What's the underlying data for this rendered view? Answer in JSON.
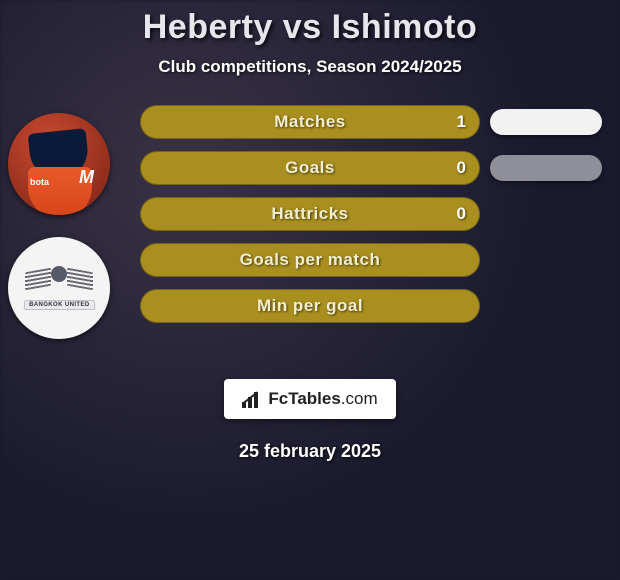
{
  "header": {
    "title": "Heberty vs Ishimoto",
    "subtitle": "Club competitions, Season 2024/2025",
    "title_color": "#e6e6ec"
  },
  "player": {
    "sponsor": "bota",
    "brand_mark": "M"
  },
  "club": {
    "banner": "BANGKOK UNITED"
  },
  "stats": {
    "bar_color": "#a98f1f",
    "label_color": "#f2eecf",
    "rows": [
      {
        "label": "Matches",
        "value": "1"
      },
      {
        "label": "Goals",
        "value": "0"
      },
      {
        "label": "Hattricks",
        "value": "0"
      },
      {
        "label": "Goals per match",
        "value": ""
      },
      {
        "label": "Min per goal",
        "value": ""
      }
    ]
  },
  "side_pills": [
    {
      "color": "#f2f2f2"
    },
    {
      "color": "#8f8f99"
    }
  ],
  "footer": {
    "brand_main": "FcTables",
    "brand_suffix": ".com",
    "date": "25 february 2025"
  },
  "colors": {
    "background": "#1a1a2e"
  }
}
